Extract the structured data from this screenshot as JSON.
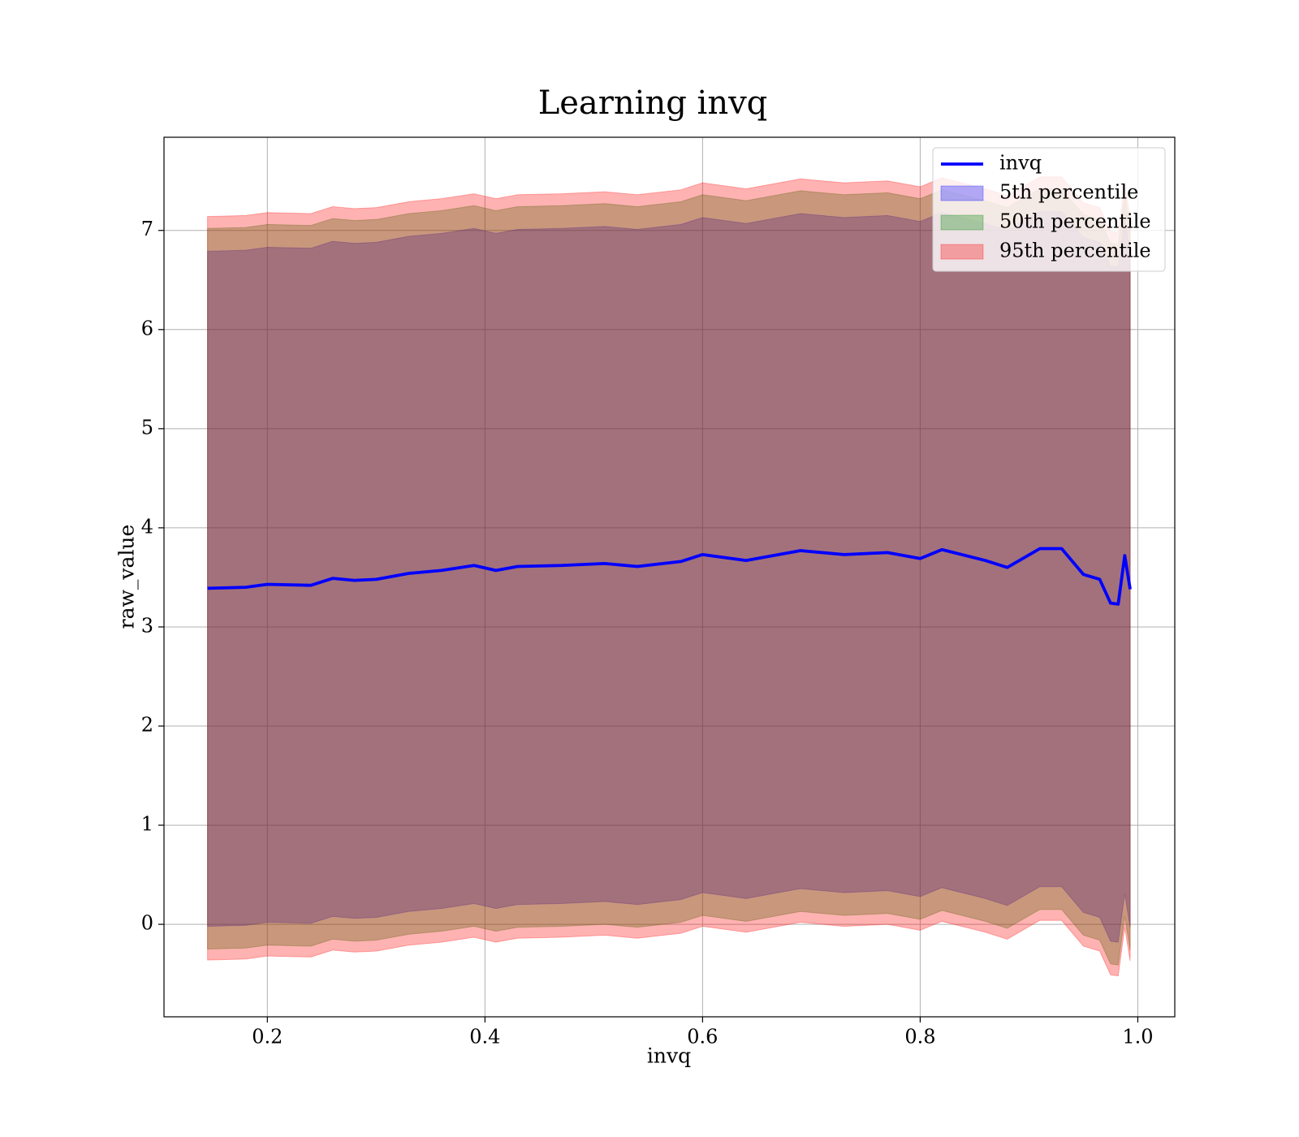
{
  "chart_data": {
    "type": "line",
    "title": "Learning invq",
    "xlabel": "invq",
    "ylabel": "raw_value",
    "x": [
      0.145,
      0.18,
      0.2,
      0.24,
      0.26,
      0.28,
      0.3,
      0.33,
      0.36,
      0.39,
      0.41,
      0.43,
      0.47,
      0.51,
      0.54,
      0.58,
      0.6,
      0.64,
      0.69,
      0.73,
      0.77,
      0.8,
      0.82,
      0.86,
      0.88,
      0.91,
      0.93,
      0.95,
      0.965,
      0.975,
      0.982,
      0.988,
      0.993
    ],
    "series": [
      {
        "name": "invq",
        "color": "#0000ff",
        "values": [
          3.39,
          3.4,
          3.43,
          3.42,
          3.49,
          3.47,
          3.48,
          3.54,
          3.57,
          3.62,
          3.57,
          3.61,
          3.62,
          3.64,
          3.61,
          3.66,
          3.73,
          3.67,
          3.77,
          3.73,
          3.75,
          3.69,
          3.78,
          3.67,
          3.6,
          3.79,
          3.79,
          3.53,
          3.48,
          3.24,
          3.23,
          3.72,
          3.38
        ]
      },
      {
        "name": "5th percentile",
        "color": "#0000ff",
        "lower": [
          -0.02,
          -0.01,
          0.02,
          0.01,
          0.08,
          0.06,
          0.07,
          0.13,
          0.16,
          0.21,
          0.16,
          0.2,
          0.21,
          0.23,
          0.2,
          0.25,
          0.32,
          0.26,
          0.36,
          0.32,
          0.34,
          0.28,
          0.37,
          0.26,
          0.19,
          0.38,
          0.38,
          0.12,
          0.07,
          -0.17,
          -0.18,
          0.31,
          -0.03
        ],
        "upper": [
          6.79,
          6.8,
          6.83,
          6.82,
          6.89,
          6.87,
          6.88,
          6.94,
          6.97,
          7.02,
          6.97,
          7.01,
          7.02,
          7.04,
          7.01,
          7.06,
          7.13,
          7.07,
          7.17,
          7.13,
          7.15,
          7.09,
          7.18,
          7.07,
          7.0,
          7.19,
          7.19,
          6.93,
          6.88,
          6.64,
          6.63,
          7.12,
          6.78
        ]
      },
      {
        "name": "50th percentile",
        "color": "#008000",
        "lower": [
          -0.25,
          -0.24,
          -0.21,
          -0.22,
          -0.15,
          -0.17,
          -0.16,
          -0.1,
          -0.07,
          -0.02,
          -0.07,
          -0.03,
          -0.02,
          0.0,
          -0.03,
          0.02,
          0.09,
          0.03,
          0.13,
          0.09,
          0.11,
          0.05,
          0.14,
          0.03,
          -0.04,
          0.15,
          0.15,
          -0.11,
          -0.16,
          -0.4,
          -0.41,
          0.08,
          -0.26
        ],
        "upper": [
          7.02,
          7.03,
          7.06,
          7.05,
          7.12,
          7.1,
          7.11,
          7.17,
          7.2,
          7.25,
          7.2,
          7.24,
          7.25,
          7.27,
          7.24,
          7.29,
          7.36,
          7.3,
          7.4,
          7.36,
          7.38,
          7.32,
          7.41,
          7.3,
          7.23,
          7.42,
          7.42,
          7.16,
          7.11,
          6.87,
          6.86,
          7.35,
          7.01
        ]
      },
      {
        "name": "95th percentile",
        "color": "#ff0000",
        "lower": [
          -0.36,
          -0.35,
          -0.32,
          -0.33,
          -0.26,
          -0.28,
          -0.27,
          -0.21,
          -0.18,
          -0.13,
          -0.18,
          -0.14,
          -0.13,
          -0.11,
          -0.14,
          -0.09,
          -0.02,
          -0.08,
          0.02,
          -0.02,
          0.0,
          -0.06,
          0.03,
          -0.08,
          -0.15,
          0.04,
          0.04,
          -0.22,
          -0.27,
          -0.51,
          -0.52,
          -0.03,
          -0.37
        ],
        "upper": [
          7.14,
          7.15,
          7.18,
          7.17,
          7.24,
          7.22,
          7.23,
          7.29,
          7.32,
          7.37,
          7.32,
          7.36,
          7.37,
          7.39,
          7.36,
          7.41,
          7.48,
          7.42,
          7.52,
          7.48,
          7.5,
          7.44,
          7.53,
          7.42,
          7.35,
          7.54,
          7.54,
          7.28,
          7.23,
          6.99,
          6.98,
          7.47,
          7.13
        ]
      }
    ],
    "fill_alpha": 0.3,
    "xlim": [
      0.105,
      1.034
    ],
    "ylim": [
      -0.933,
      7.94
    ],
    "xticks": [
      0.2,
      0.4,
      0.6,
      0.8,
      {
        "value": 1,
        "label": "1.0"
      }
    ],
    "yticks": [
      0,
      1,
      2,
      3,
      4,
      5,
      6,
      7
    ],
    "grid": true,
    "legend_loc": "upper right"
  }
}
